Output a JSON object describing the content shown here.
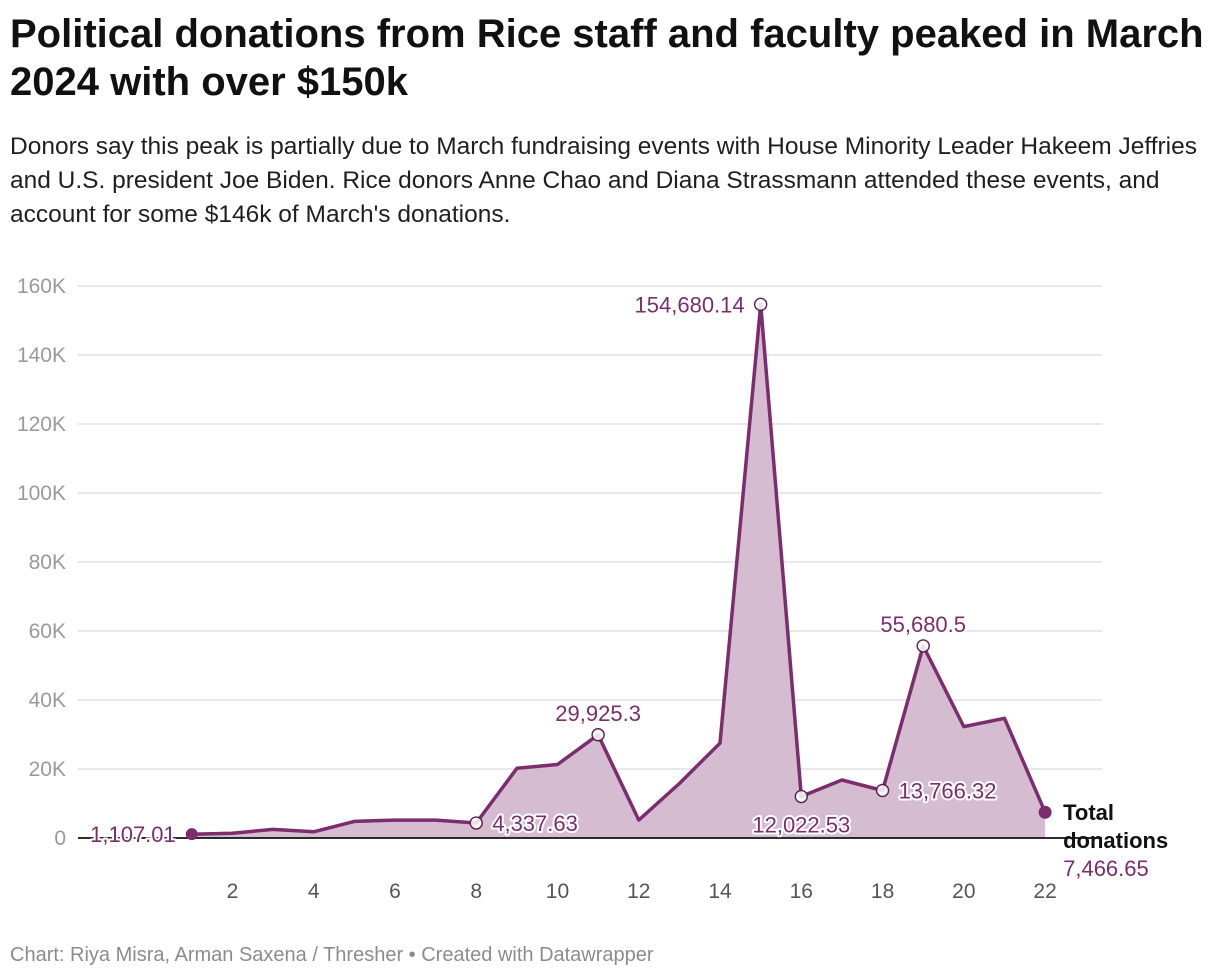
{
  "header": {
    "title": "Political donations from Rice staff and faculty peaked in March 2024 with over $150k",
    "subtitle": "Donors say this peak is partially due to March fundraising events with House Minority Leader Hakeem Jeffries and U.S. president Joe Biden. Rice donors Anne Chao and Diana Strassmann attended these events, and account for some $146k of March's donations."
  },
  "footer": {
    "credit": "Chart: Riya Misra, Arman Saxena / Thresher • Created with Datawrapper"
  },
  "chart_data": {
    "type": "area",
    "title": "Political donations from Rice staff and faculty peaked in March 2024 with over $150k",
    "xlabel": "",
    "ylabel": "",
    "xlim": [
      -1.8,
      23.4
    ],
    "ylim": [
      0,
      160000
    ],
    "grid": true,
    "line_color": "#7b2d6e",
    "fill_color": "#d5bcd0",
    "series": [
      {
        "name": "Total donations",
        "x": [
          1,
          2,
          3,
          4,
          5,
          6,
          7,
          8,
          9,
          10,
          11,
          12,
          13,
          14,
          15,
          16,
          17,
          18,
          19,
          20,
          21,
          22
        ],
        "values": [
          1107.01,
          1400,
          2500,
          1800,
          4800,
          5200,
          5200,
          4337.63,
          20200,
          21300,
          29925.3,
          5200,
          15800,
          27500,
          154680.14,
          12022.53,
          16800,
          13766.32,
          55680.5,
          32300,
          34700,
          7466.65
        ]
      }
    ],
    "yticks": [
      0,
      20000,
      40000,
      60000,
      80000,
      100000,
      120000,
      140000,
      160000
    ],
    "ytick_labels": [
      "0",
      "20K",
      "40K",
      "60K",
      "80K",
      "100K",
      "120K",
      "140K",
      "160K"
    ],
    "xticks": [
      2,
      4,
      6,
      8,
      10,
      12,
      14,
      16,
      18,
      20,
      22
    ],
    "xtick_labels": [
      "2",
      "4",
      "6",
      "8",
      "10",
      "12",
      "14",
      "16",
      "18",
      "20",
      "22"
    ],
    "annotations": [
      {
        "x": 1,
        "value": 1107.01,
        "label": "1,107.01",
        "anchor": "left"
      },
      {
        "x": 8,
        "value": 4337.63,
        "label": "4,337.63",
        "anchor": "right"
      },
      {
        "x": 11,
        "value": 29925.3,
        "label": "29,925.3",
        "anchor": "above"
      },
      {
        "x": 15,
        "value": 154680.14,
        "label": "154,680.14",
        "anchor": "left"
      },
      {
        "x": 16,
        "value": 12022.53,
        "label": "12,022.53",
        "anchor": "below"
      },
      {
        "x": 18,
        "value": 13766.32,
        "label": "13,766.32",
        "anchor": "right"
      },
      {
        "x": 19,
        "value": 55680.5,
        "label": "55,680.5",
        "anchor": "above"
      }
    ],
    "end_label": {
      "line1": "Total",
      "line2": "donations",
      "value_label": "7,466.65"
    }
  }
}
